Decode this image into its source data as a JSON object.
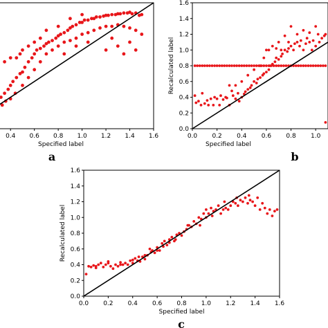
{
  "colors": {
    "points": "#e8161a",
    "line": "#000000",
    "frame": "#000000"
  },
  "chart_data": [
    {
      "type": "scatter",
      "panel_label": "a",
      "xlabel": "Specified label",
      "ylabel": "",
      "xticks": [
        "0.4",
        "0.6",
        "0.8",
        "1.0",
        "1.2",
        "1.4",
        "1.6"
      ],
      "yticks": [],
      "xlim": [
        0.3,
        1.6
      ],
      "ylim": [
        0.0,
        1.6
      ],
      "diagonal": true,
      "points": [
        [
          0.32,
          0.4
        ],
        [
          0.35,
          0.45
        ],
        [
          0.38,
          0.5
        ],
        [
          0.4,
          0.55
        ],
        [
          0.42,
          0.6
        ],
        [
          0.45,
          0.65
        ],
        [
          0.48,
          0.7
        ],
        [
          0.5,
          0.72
        ],
        [
          0.52,
          0.78
        ],
        [
          0.55,
          0.85
        ],
        [
          0.58,
          0.9
        ],
        [
          0.6,
          0.95
        ],
        [
          0.62,
          1.0
        ],
        [
          0.65,
          1.02
        ],
        [
          0.68,
          1.05
        ],
        [
          0.7,
          1.08
        ],
        [
          0.72,
          1.1
        ],
        [
          0.75,
          1.12
        ],
        [
          0.78,
          1.15
        ],
        [
          0.8,
          1.18
        ],
        [
          0.82,
          1.2
        ],
        [
          0.85,
          1.22
        ],
        [
          0.88,
          1.25
        ],
        [
          0.9,
          1.28
        ],
        [
          0.92,
          1.3
        ],
        [
          0.95,
          1.32
        ],
        [
          0.98,
          1.35
        ],
        [
          1.0,
          1.35
        ],
        [
          1.02,
          1.38
        ],
        [
          1.05,
          1.38
        ],
        [
          1.08,
          1.4
        ],
        [
          1.1,
          1.4
        ],
        [
          1.12,
          1.42
        ],
        [
          1.15,
          1.42
        ],
        [
          1.18,
          1.43
        ],
        [
          1.2,
          1.44
        ],
        [
          1.22,
          1.44
        ],
        [
          1.25,
          1.45
        ],
        [
          1.28,
          1.45
        ],
        [
          1.3,
          1.46
        ],
        [
          1.32,
          1.46
        ],
        [
          1.35,
          1.47
        ],
        [
          1.38,
          1.47
        ],
        [
          1.4,
          1.48
        ],
        [
          1.42,
          1.46
        ],
        [
          1.45,
          1.47
        ],
        [
          1.48,
          1.44
        ],
        [
          1.5,
          1.45
        ],
        [
          0.33,
          0.3
        ],
        [
          0.36,
          0.35
        ],
        [
          0.4,
          0.38
        ],
        [
          0.44,
          0.45
        ],
        [
          0.5,
          0.55
        ],
        [
          0.55,
          0.65
        ],
        [
          0.6,
          0.75
        ],
        [
          0.65,
          0.85
        ],
        [
          0.7,
          0.95
        ],
        [
          0.75,
          1.0
        ],
        [
          0.8,
          1.05
        ],
        [
          0.85,
          1.1
        ],
        [
          0.9,
          1.12
        ],
        [
          0.95,
          1.15
        ],
        [
          1.0,
          1.2
        ],
        [
          1.05,
          1.22
        ],
        [
          1.1,
          1.25
        ],
        [
          1.15,
          1.28
        ],
        [
          1.2,
          1.3
        ],
        [
          1.25,
          1.3
        ],
        [
          1.3,
          1.32
        ],
        [
          1.35,
          1.3
        ],
        [
          1.4,
          1.28
        ],
        [
          1.45,
          1.25
        ],
        [
          1.5,
          1.2
        ],
        [
          0.6,
          1.1
        ],
        [
          0.7,
          1.25
        ],
        [
          0.8,
          1.3
        ],
        [
          0.55,
          1.05
        ],
        [
          0.65,
          1.15
        ],
        [
          0.9,
          1.4
        ],
        [
          1.0,
          1.45
        ],
        [
          0.45,
          0.9
        ],
        [
          0.5,
          1.0
        ],
        [
          0.35,
          0.85
        ],
        [
          0.4,
          0.9
        ],
        [
          0.48,
          0.95
        ],
        [
          1.2,
          1.0
        ],
        [
          1.3,
          1.05
        ],
        [
          1.4,
          1.1
        ],
        [
          1.45,
          1.0
        ],
        [
          1.35,
          0.95
        ],
        [
          1.25,
          1.15
        ],
        [
          0.85,
          0.95
        ],
        [
          0.95,
          1.05
        ],
        [
          1.05,
          1.1
        ]
      ]
    },
    {
      "type": "scatter",
      "panel_label": "b",
      "xlabel": "Specified label",
      "ylabel": "Recalculated label",
      "xticks": [
        "0.0",
        "0.2",
        "0.4",
        "0.6",
        "0.8",
        "1.0"
      ],
      "yticks": [
        "0.0",
        "0.2",
        "0.4",
        "0.6",
        "0.8",
        "1.0",
        "1.2",
        "1.4",
        "1.6"
      ],
      "xlim": [
        0.0,
        1.1
      ],
      "ylim": [
        0.0,
        1.6
      ],
      "diagonal": true,
      "points": [
        [
          0.0,
          0.28
        ],
        [
          0.02,
          0.42
        ],
        [
          0.03,
          0.33
        ],
        [
          0.05,
          0.35
        ],
        [
          0.07,
          0.3
        ],
        [
          0.08,
          0.45
        ],
        [
          0.1,
          0.32
        ],
        [
          0.12,
          0.36
        ],
        [
          0.13,
          0.3
        ],
        [
          0.15,
          0.38
        ],
        [
          0.17,
          0.3
        ],
        [
          0.18,
          0.4
        ],
        [
          0.2,
          0.38
        ],
        [
          0.22,
          0.3
        ],
        [
          0.23,
          0.42
        ],
        [
          0.25,
          0.37
        ],
        [
          0.27,
          0.4
        ],
        [
          0.28,
          0.39
        ],
        [
          0.3,
          0.3
        ],
        [
          0.32,
          0.48
        ],
        [
          0.33,
          0.42
        ],
        [
          0.35,
          0.38
        ],
        [
          0.37,
          0.45
        ],
        [
          0.38,
          0.35
        ],
        [
          0.4,
          0.4
        ],
        [
          0.42,
          0.44
        ],
        [
          0.43,
          0.47
        ],
        [
          0.45,
          0.5
        ],
        [
          0.47,
          0.52
        ],
        [
          0.48,
          0.55
        ],
        [
          0.5,
          0.6
        ],
        [
          0.52,
          0.58
        ],
        [
          0.53,
          0.63
        ],
        [
          0.55,
          0.65
        ],
        [
          0.57,
          0.68
        ],
        [
          0.58,
          0.7
        ],
        [
          0.6,
          0.72
        ],
        [
          0.62,
          0.75
        ],
        [
          0.63,
          0.8
        ],
        [
          0.65,
          0.82
        ],
        [
          0.67,
          0.85
        ],
        [
          0.68,
          0.9
        ],
        [
          0.7,
          0.88
        ],
        [
          0.72,
          0.92
        ],
        [
          0.73,
          0.95
        ],
        [
          0.75,
          1.0
        ],
        [
          0.77,
          0.98
        ],
        [
          0.78,
          1.02
        ],
        [
          0.8,
          1.05
        ],
        [
          0.82,
          1.0
        ],
        [
          0.83,
          1.08
        ],
        [
          0.85,
          1.1
        ],
        [
          0.87,
          1.05
        ],
        [
          0.88,
          1.12
        ],
        [
          0.9,
          1.0
        ],
        [
          0.92,
          1.08
        ],
        [
          0.93,
          1.15
        ],
        [
          0.95,
          1.1
        ],
        [
          0.97,
          1.0
        ],
        [
          0.98,
          1.12
        ],
        [
          1.0,
          1.05
        ],
        [
          1.02,
          1.2
        ],
        [
          1.03,
          1.1
        ],
        [
          1.05,
          1.15
        ],
        [
          1.07,
          1.18
        ],
        [
          1.08,
          1.2
        ],
        [
          0.6,
          1.0
        ],
        [
          0.7,
          1.1
        ],
        [
          0.75,
          1.18
        ],
        [
          0.55,
          0.8
        ],
        [
          0.5,
          0.75
        ],
        [
          0.45,
          0.68
        ],
        [
          0.65,
          1.05
        ],
        [
          0.8,
          1.3
        ],
        [
          0.9,
          1.25
        ],
        [
          0.78,
          1.1
        ],
        [
          0.58,
          0.9
        ],
        [
          0.4,
          0.6
        ],
        [
          0.35,
          0.55
        ],
        [
          0.3,
          0.55
        ],
        [
          1.08,
          0.08
        ],
        [
          0.62,
          1.0
        ],
        [
          0.68,
          1.02
        ],
        [
          0.72,
          1.0
        ],
        [
          0.85,
          1.2
        ],
        [
          0.95,
          1.22
        ],
        [
          1.0,
          1.3
        ],
        [
          0.02,
          0.8
        ],
        [
          0.04,
          0.8
        ],
        [
          0.06,
          0.8
        ],
        [
          0.08,
          0.8
        ],
        [
          0.1,
          0.8
        ],
        [
          0.12,
          0.8
        ],
        [
          0.14,
          0.8
        ],
        [
          0.16,
          0.8
        ],
        [
          0.18,
          0.8
        ],
        [
          0.2,
          0.8
        ],
        [
          0.22,
          0.8
        ],
        [
          0.24,
          0.8
        ],
        [
          0.26,
          0.8
        ],
        [
          0.28,
          0.8
        ],
        [
          0.3,
          0.8
        ],
        [
          0.32,
          0.8
        ],
        [
          0.34,
          0.8
        ],
        [
          0.36,
          0.8
        ],
        [
          0.38,
          0.8
        ],
        [
          0.4,
          0.8
        ],
        [
          0.42,
          0.8
        ],
        [
          0.44,
          0.8
        ],
        [
          0.46,
          0.8
        ],
        [
          0.48,
          0.8
        ],
        [
          0.5,
          0.8
        ],
        [
          0.52,
          0.8
        ],
        [
          0.54,
          0.8
        ],
        [
          0.56,
          0.8
        ],
        [
          0.58,
          0.8
        ],
        [
          0.6,
          0.8
        ],
        [
          0.62,
          0.8
        ],
        [
          0.64,
          0.8
        ],
        [
          0.66,
          0.8
        ],
        [
          0.68,
          0.8
        ],
        [
          0.7,
          0.8
        ],
        [
          0.72,
          0.8
        ],
        [
          0.74,
          0.8
        ],
        [
          0.76,
          0.8
        ],
        [
          0.78,
          0.8
        ],
        [
          0.8,
          0.8
        ],
        [
          0.82,
          0.8
        ],
        [
          0.84,
          0.8
        ],
        [
          0.86,
          0.8
        ],
        [
          0.88,
          0.8
        ],
        [
          0.9,
          0.8
        ],
        [
          0.92,
          0.8
        ],
        [
          0.94,
          0.8
        ],
        [
          0.96,
          0.8
        ],
        [
          0.98,
          0.8
        ],
        [
          1.0,
          0.8
        ],
        [
          1.02,
          0.8
        ],
        [
          1.04,
          0.8
        ],
        [
          1.06,
          0.8
        ],
        [
          1.08,
          0.8
        ]
      ]
    },
    {
      "type": "scatter",
      "panel_label": "c",
      "xlabel": "Specified label",
      "ylabel": "Recalculated label",
      "xticks": [
        "0.0",
        "0.2",
        "0.4",
        "0.6",
        "0.8",
        "1.0",
        "1.2",
        "1.4",
        "1.6"
      ],
      "yticks": [
        "0.0",
        "0.2",
        "0.4",
        "0.6",
        "0.8",
        "1.0",
        "1.2",
        "1.4",
        "1.6"
      ],
      "xlim": [
        0.0,
        1.6
      ],
      "ylim": [
        0.0,
        1.6
      ],
      "diagonal": true,
      "points": [
        [
          0.0,
          0.3
        ],
        [
          0.02,
          0.28
        ],
        [
          0.04,
          0.38
        ],
        [
          0.06,
          0.37
        ],
        [
          0.08,
          0.39
        ],
        [
          0.1,
          0.38
        ],
        [
          0.12,
          0.4
        ],
        [
          0.14,
          0.42
        ],
        [
          0.16,
          0.37
        ],
        [
          0.18,
          0.4
        ],
        [
          0.2,
          0.42
        ],
        [
          0.22,
          0.38
        ],
        [
          0.24,
          0.35
        ],
        [
          0.26,
          0.4
        ],
        [
          0.28,
          0.38
        ],
        [
          0.3,
          0.43
        ],
        [
          0.32,
          0.4
        ],
        [
          0.34,
          0.42
        ],
        [
          0.36,
          0.4
        ],
        [
          0.38,
          0.45
        ],
        [
          0.4,
          0.42
        ],
        [
          0.42,
          0.48
        ],
        [
          0.44,
          0.45
        ],
        [
          0.46,
          0.44
        ],
        [
          0.48,
          0.5
        ],
        [
          0.5,
          0.47
        ],
        [
          0.52,
          0.52
        ],
        [
          0.54,
          0.6
        ],
        [
          0.56,
          0.58
        ],
        [
          0.58,
          0.55
        ],
        [
          0.6,
          0.62
        ],
        [
          0.62,
          0.58
        ],
        [
          0.64,
          0.67
        ],
        [
          0.66,
          0.7
        ],
        [
          0.68,
          0.65
        ],
        [
          0.7,
          0.72
        ],
        [
          0.72,
          0.75
        ],
        [
          0.74,
          0.7
        ],
        [
          0.76,
          0.78
        ],
        [
          0.78,
          0.8
        ],
        [
          0.8,
          0.77
        ],
        [
          0.82,
          0.82
        ],
        [
          0.84,
          0.85
        ],
        [
          0.86,
          0.9
        ],
        [
          0.88,
          0.88
        ],
        [
          0.9,
          0.95
        ],
        [
          0.92,
          0.92
        ],
        [
          0.94,
          1.0
        ],
        [
          0.96,
          0.98
        ],
        [
          0.98,
          1.05
        ],
        [
          1.0,
          1.1
        ],
        [
          1.02,
          1.05
        ],
        [
          1.04,
          1.12
        ],
        [
          1.06,
          1.08
        ],
        [
          1.08,
          1.1
        ],
        [
          1.1,
          1.15
        ],
        [
          1.12,
          1.05
        ],
        [
          1.14,
          1.1
        ],
        [
          1.16,
          1.12
        ],
        [
          1.18,
          1.1
        ],
        [
          1.2,
          1.15
        ],
        [
          1.22,
          1.2
        ],
        [
          1.24,
          1.18
        ],
        [
          1.26,
          1.15
        ],
        [
          1.28,
          1.22
        ],
        [
          1.3,
          1.2
        ],
        [
          1.32,
          1.25
        ],
        [
          1.34,
          1.18
        ],
        [
          1.36,
          1.22
        ],
        [
          1.38,
          1.2
        ],
        [
          1.4,
          1.15
        ],
        [
          1.42,
          1.25
        ],
        [
          1.44,
          1.1
        ],
        [
          1.46,
          1.18
        ],
        [
          1.48,
          1.12
        ],
        [
          1.5,
          1.05
        ],
        [
          1.52,
          1.1
        ],
        [
          1.54,
          1.02
        ],
        [
          1.56,
          1.08
        ],
        [
          1.58,
          1.1
        ],
        [
          0.95,
          0.9
        ],
        [
          1.0,
          1.0
        ],
        [
          1.05,
          1.02
        ],
        [
          1.15,
          1.2
        ],
        [
          1.25,
          1.25
        ],
        [
          1.35,
          1.28
        ],
        [
          0.7,
          0.68
        ],
        [
          0.6,
          0.58
        ],
        [
          0.5,
          0.52
        ],
        [
          0.4,
          0.46
        ],
        [
          0.3,
          0.4
        ],
        [
          0.2,
          0.44
        ],
        [
          0.1,
          0.36
        ],
        [
          0.85,
          0.9
        ],
        [
          0.75,
          0.72
        ],
        [
          0.65,
          0.63
        ],
        [
          0.55,
          0.56
        ],
        [
          0.45,
          0.5
        ]
      ]
    }
  ]
}
